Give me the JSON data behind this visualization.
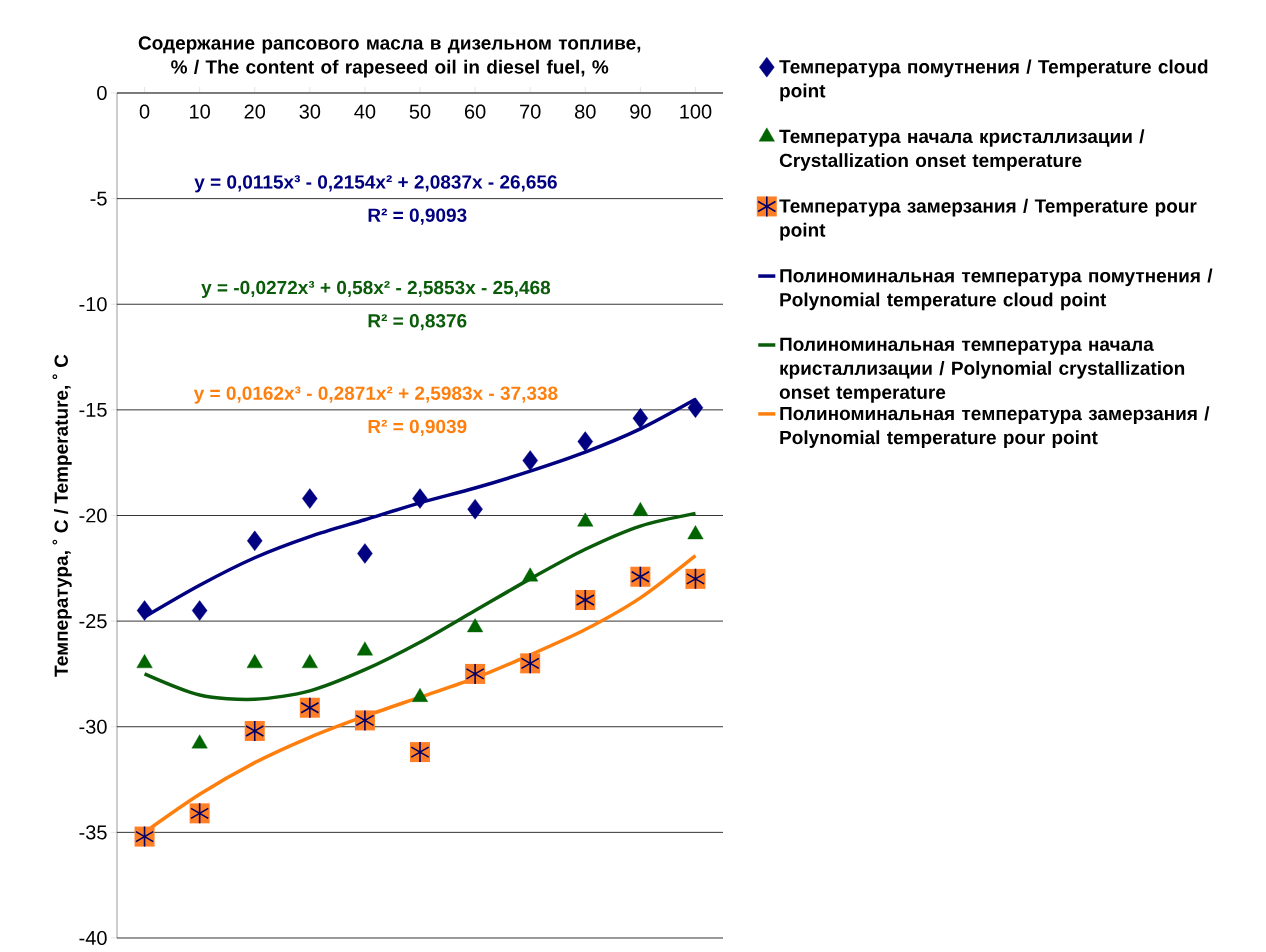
{
  "chart_data": {
    "type": "scatter",
    "xlabel": "Содержание рапсового масла в дизельном топливе, % / The content of rapeseed oil in diesel fuel, %",
    "ylabel": "Температура, ˚ C / Temperature, ˚ C",
    "categories": [
      "0",
      "10",
      "20",
      "30",
      "40",
      "50",
      "60",
      "70",
      "80",
      "90",
      "100"
    ],
    "ylim": [
      -40,
      0
    ],
    "yticks": [
      0,
      -5,
      -10,
      -15,
      -20,
      -25,
      -30,
      -35,
      -40
    ],
    "grid": "y",
    "legend": "right",
    "series": [
      {
        "name": "Температура помутнения / Temperature cloud point",
        "marker": "diamond",
        "color": "#000080",
        "values": [
          -24.5,
          -24.5,
          -21.2,
          -19.2,
          -21.8,
          -19.2,
          -19.7,
          -17.4,
          -16.5,
          -15.4,
          -14.9
        ]
      },
      {
        "name": "Температура начала кристаллизации / Crystallization onset temperature",
        "marker": "triangle",
        "color": "#006400",
        "values": [
          -27.0,
          -30.8,
          -27.0,
          -27.0,
          -26.4,
          -28.6,
          -25.3,
          -22.9,
          -20.3,
          -19.8,
          -20.9
        ]
      },
      {
        "name": "Температура замерзания / Temperature pour point",
        "marker": "square",
        "color": "#ff7f27",
        "values": [
          -35.2,
          -34.1,
          -30.2,
          -29.1,
          -29.7,
          -31.2,
          -27.5,
          -27.0,
          -24.0,
          -22.9,
          -23.0
        ]
      },
      {
        "name": "Полиноминальная температура помутнения / Polynomial temperature cloud point",
        "type": "line",
        "color": "#000080",
        "values": [
          -24.8,
          -23.3,
          -22.0,
          -21.0,
          -20.2,
          -19.4,
          -18.7,
          -17.9,
          -17.0,
          -15.9,
          -14.5
        ]
      },
      {
        "name": "Полиноминальная температура начала кристаллизации / Polynomial crystallization onset temperature",
        "type": "line",
        "color": "#0a5c0a",
        "values": [
          -27.5,
          -28.5,
          -28.7,
          -28.3,
          -27.3,
          -26.0,
          -24.5,
          -23.0,
          -21.6,
          -20.5,
          -19.9
        ]
      },
      {
        "name": "Полиноминальная тeмпература замерзания / Polynomial temperature pour point",
        "type": "line",
        "color": "#ff7f0e",
        "values": [
          -35.0,
          -33.2,
          -31.7,
          -30.5,
          -29.5,
          -28.6,
          -27.7,
          -26.6,
          -25.4,
          -23.9,
          -21.9
        ]
      }
    ],
    "annotations": [
      "y = 0,0115x³ - 0,2154x² + 2,0837x - 26,656",
      "R² = 0,9093",
      "y = -0,0272x³ + 0,58x² - 2,5853x - 25,468",
      "R² = 0,8376",
      "y = 0,0162x³ - 0,2871x² + 2,5983x - 37,338",
      "R² = 0,9039"
    ]
  }
}
